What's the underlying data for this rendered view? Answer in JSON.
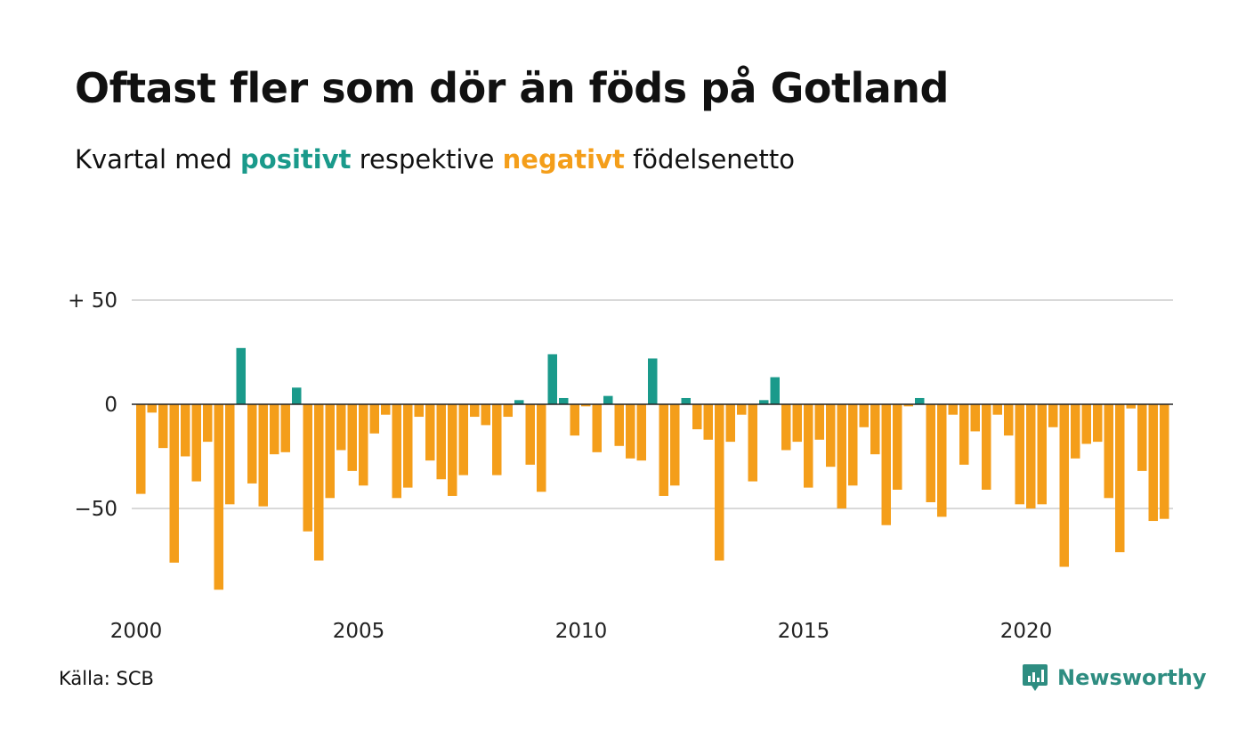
{
  "title": "Oftast fler som dör än föds på Gotland",
  "subtitle": {
    "prefix": "Kvartal med ",
    "positive": "positivt",
    "middle": " respektive ",
    "negative": "negativt",
    "suffix": " födelsenetto"
  },
  "source": "Källa: SCB",
  "brand": "Newsworthy",
  "colors": {
    "positive": "#1a9a8b",
    "negative": "#f49e1a",
    "grid": "#d9d9d9",
    "axis": "#222222"
  },
  "chart_data": {
    "type": "bar",
    "title": "Oftast fler som dör än föds på Gotland",
    "subtitle": "Kvartal med positivt respektive negativt födelsenetto",
    "ylim": [
      -90,
      50
    ],
    "y_ticks": [
      {
        "value": 50,
        "label": "+ 50"
      },
      {
        "value": 0,
        "label": "0"
      },
      {
        "value": -50,
        "label": "−50"
      }
    ],
    "x_ticks": [
      {
        "year": 2000,
        "label": "2000"
      },
      {
        "year": 2005,
        "label": "2005"
      },
      {
        "year": 2010,
        "label": "2010"
      },
      {
        "year": 2015,
        "label": "2015"
      },
      {
        "year": 2020,
        "label": "2020"
      }
    ],
    "start": "2000 Q1",
    "series": [
      {
        "values": [
          -43,
          -4,
          -21,
          -76,
          -25,
          -37,
          -18,
          -89,
          -48,
          27,
          -38,
          -49,
          -24,
          -23,
          8,
          -61,
          -75,
          -45,
          -22,
          -32,
          -39,
          -14,
          -5,
          -45,
          -40,
          -6,
          -27,
          -36,
          -44,
          -34,
          -6,
          -10,
          -34,
          -6,
          2,
          -29,
          -42,
          24,
          3,
          -15,
          -1,
          -23,
          4,
          -20,
          -26,
          -27,
          22,
          -44,
          -39,
          3,
          -12,
          -17,
          -75,
          -18,
          -5,
          -37,
          2,
          13,
          -22,
          -18,
          -40,
          -17,
          -30,
          -50,
          -39,
          -11,
          -24,
          -58,
          -41,
          -1,
          3,
          -47,
          -54,
          -5,
          -29,
          -13,
          -41,
          -5,
          -15,
          -48,
          -50,
          -48,
          -11,
          -78,
          -26,
          -19,
          -18,
          -45,
          -71,
          -2,
          -32,
          -56,
          -55
        ]
      }
    ],
    "grid": true
  }
}
